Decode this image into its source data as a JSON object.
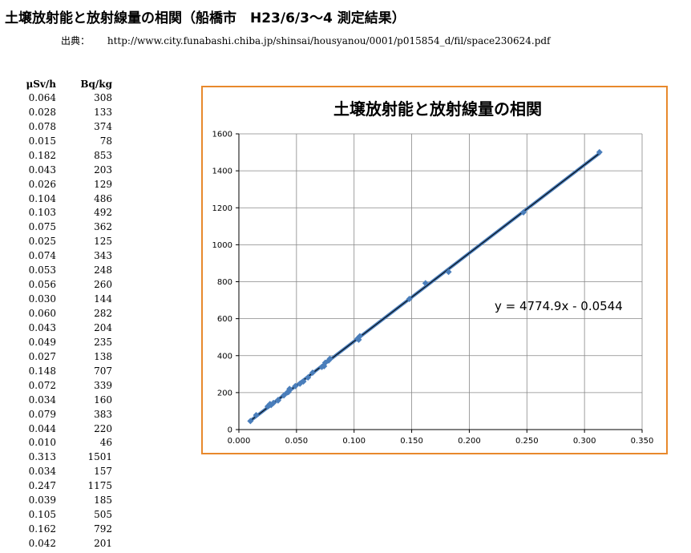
{
  "page": {
    "title": "土壌放射能と放射線量の相関（船橋市　H23/6/3～4 測定結果）",
    "source_label": "出典：",
    "source_url": "http://www.city.funabashi.chiba.jp/shinsai/housyanou/0001/p015854_d/fil/space230624.pdf"
  },
  "table": {
    "headers": [
      "μSv/h",
      "Bq/kg"
    ],
    "rows": [
      [
        "0.064",
        "308"
      ],
      [
        "0.028",
        "133"
      ],
      [
        "0.078",
        "374"
      ],
      [
        "0.015",
        "78"
      ],
      [
        "0.182",
        "853"
      ],
      [
        "0.043",
        "203"
      ],
      [
        "0.026",
        "129"
      ],
      [
        "0.104",
        "486"
      ],
      [
        "0.103",
        "492"
      ],
      [
        "0.075",
        "362"
      ],
      [
        "0.025",
        "125"
      ],
      [
        "0.074",
        "343"
      ],
      [
        "0.053",
        "248"
      ],
      [
        "0.056",
        "260"
      ],
      [
        "0.030",
        "144"
      ],
      [
        "0.060",
        "282"
      ],
      [
        "0.043",
        "204"
      ],
      [
        "0.049",
        "235"
      ],
      [
        "0.027",
        "138"
      ],
      [
        "0.148",
        "707"
      ],
      [
        "0.072",
        "339"
      ],
      [
        "0.034",
        "160"
      ],
      [
        "0.079",
        "383"
      ],
      [
        "0.044",
        "220"
      ],
      [
        "0.010",
        "46"
      ],
      [
        "0.313",
        "1501"
      ],
      [
        "0.034",
        "157"
      ],
      [
        "0.247",
        "1175"
      ],
      [
        "0.039",
        "185"
      ],
      [
        "0.105",
        "505"
      ],
      [
        "0.162",
        "792"
      ],
      [
        "0.042",
        "201"
      ]
    ]
  },
  "chart_data": {
    "type": "scatter",
    "title": "土壌放射能と放射線量の相関",
    "xlabel": "",
    "ylabel": "",
    "xlim": [
      0,
      0.35
    ],
    "ylim": [
      0,
      1600
    ],
    "x_ticks": [
      "0.000",
      "0.050",
      "0.100",
      "0.150",
      "0.200",
      "0.250",
      "0.300",
      "0.350"
    ],
    "y_ticks": [
      "0",
      "200",
      "400",
      "600",
      "800",
      "1000",
      "1200",
      "1400",
      "1600"
    ],
    "grid": true,
    "legend": "none",
    "trendline": {
      "type": "linear",
      "slope": 4774.9,
      "intercept": -0.0544,
      "equation": "y = 4774.9x - 0.0544"
    },
    "series": [
      {
        "x": [
          0.064,
          0.028,
          0.078,
          0.015,
          0.182,
          0.043,
          0.026,
          0.104,
          0.103,
          0.075,
          0.025,
          0.074,
          0.053,
          0.056,
          0.03,
          0.06,
          0.043,
          0.049,
          0.027,
          0.148,
          0.072,
          0.034,
          0.079,
          0.044,
          0.01,
          0.313,
          0.034,
          0.247,
          0.039,
          0.105,
          0.162,
          0.042
        ],
        "y": [
          308,
          133,
          374,
          78,
          853,
          203,
          129,
          486,
          492,
          362,
          125,
          343,
          248,
          260,
          144,
          282,
          204,
          235,
          138,
          707,
          339,
          160,
          383,
          220,
          46,
          1501,
          157,
          1175,
          185,
          505,
          792,
          201
        ]
      }
    ],
    "colors": {
      "marker": "#4a7ebb",
      "trendline": "#000000",
      "gridline": "#888888",
      "border": "#e8892c"
    }
  }
}
